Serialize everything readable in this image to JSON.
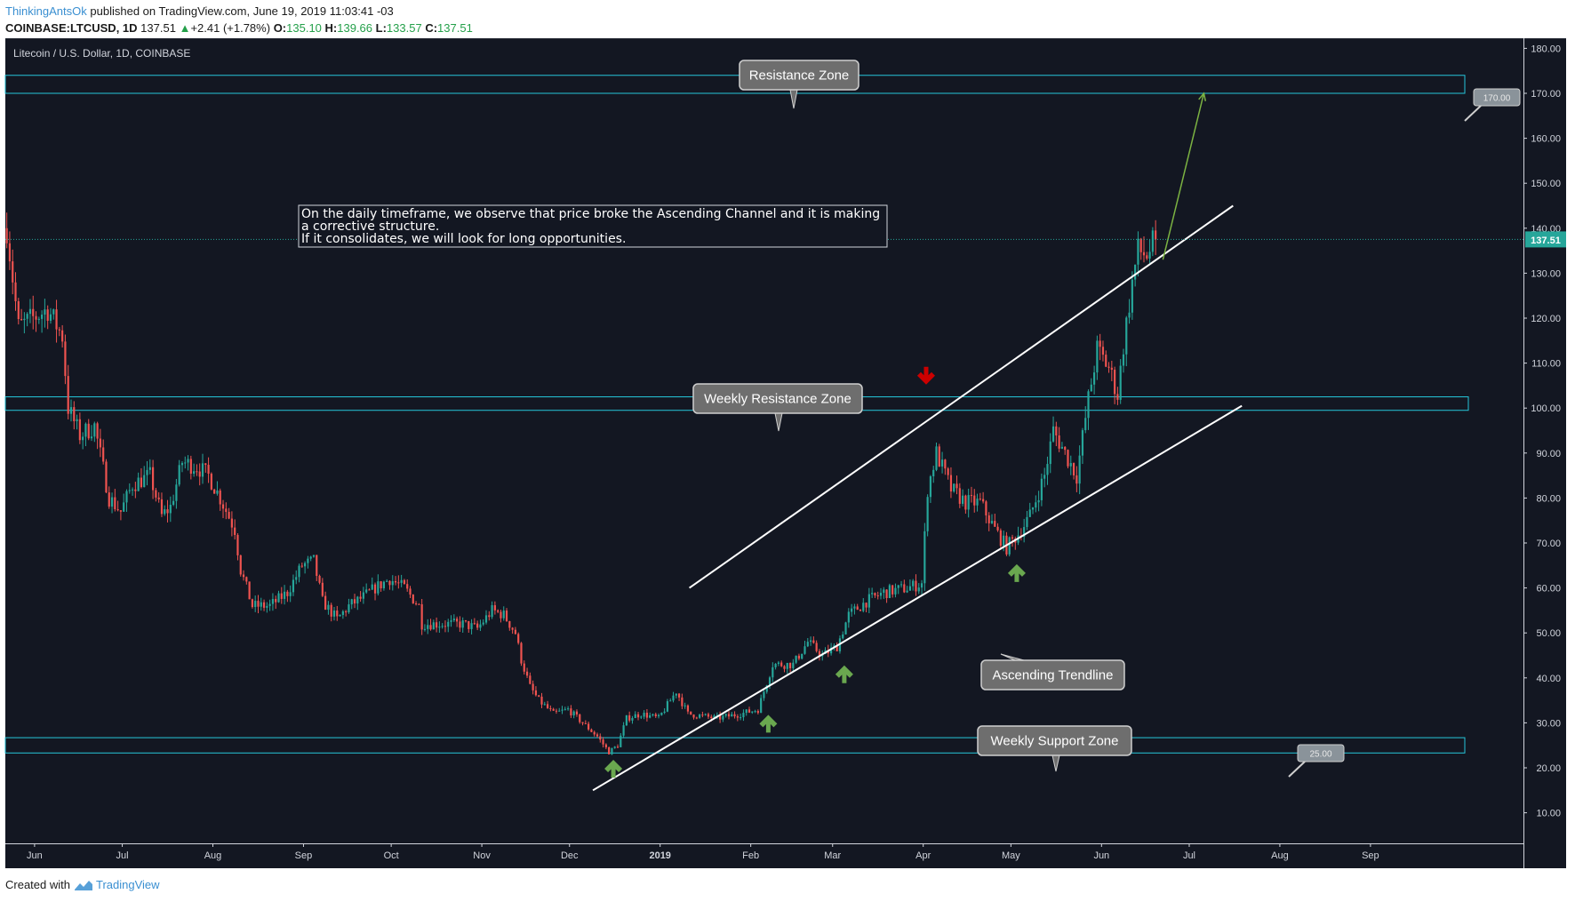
{
  "header": {
    "author": "ThinkingAntsOk",
    "published": "published on TradingView.com, June 19, 2019 11:03:41 -03",
    "symbol": "COINBASE:LTCUSD, 1D",
    "last": "137.51",
    "change": "+2.41 (+1.78%)",
    "o_label": "O:",
    "o": "135.10",
    "h_label": "H:",
    "h": "139.66",
    "l_label": "L:",
    "l": "133.57",
    "c_label": "C:",
    "c": "137.51"
  },
  "footer": {
    "created_with": "Created with",
    "brand": "TradingView"
  },
  "colors": {
    "background": "#131722",
    "up": "#26a69a",
    "down": "#ef5350",
    "zone": "#26c6da",
    "trendline": "#ffffff",
    "projection": "#7cb342",
    "arrow_up": "#6aa84f",
    "arrow_down": "#cc0000"
  },
  "chart_data": {
    "type": "candlestick",
    "title": "Litecoin / U.S. Dollar, 1D, COINBASE",
    "ylim": [
      10,
      190
    ],
    "yticks": [
      10,
      20,
      30,
      40,
      50,
      60,
      70,
      80,
      90,
      100,
      110,
      120,
      130,
      140,
      150,
      160,
      170,
      180
    ],
    "ytick_labels": [
      "10.00",
      "20.00",
      "30.00",
      "40.00",
      "50.00",
      "60.00",
      "70.00",
      "80.00",
      "90.00",
      "100.00",
      "110.00",
      "120.00",
      "130.00",
      "140.00",
      "150.00",
      "160.00",
      "170.00",
      "180.00"
    ],
    "x_start": "2018-05-22",
    "x_end": "2019-09-08",
    "xticks": [
      {
        "date": "2018-06-01",
        "label": "Jun"
      },
      {
        "date": "2018-07-01",
        "label": "Jul"
      },
      {
        "date": "2018-08-01",
        "label": "Aug"
      },
      {
        "date": "2018-09-01",
        "label": "Sep"
      },
      {
        "date": "2018-10-01",
        "label": "Oct"
      },
      {
        "date": "2018-11-01",
        "label": "Nov"
      },
      {
        "date": "2018-12-01",
        "label": "Dec"
      },
      {
        "date": "2019-01-01",
        "label": "2019"
      },
      {
        "date": "2019-02-01",
        "label": "Feb"
      },
      {
        "date": "2019-03-01",
        "label": "Mar"
      },
      {
        "date": "2019-04-01",
        "label": "Apr"
      },
      {
        "date": "2019-05-01",
        "label": "May"
      },
      {
        "date": "2019-06-01",
        "label": "Jun"
      },
      {
        "date": "2019-07-01",
        "label": "Jul"
      },
      {
        "date": "2019-08-01",
        "label": "Aug"
      },
      {
        "date": "2019-09-01",
        "label": "Sep"
      }
    ],
    "price_path": [
      [
        "2018-05-22",
        140
      ],
      [
        "2018-05-26",
        118
      ],
      [
        "2018-06-05",
        122
      ],
      [
        "2018-06-10",
        116
      ],
      [
        "2018-06-12",
        100
      ],
      [
        "2018-06-16",
        94
      ],
      [
        "2018-06-21",
        96
      ],
      [
        "2018-06-26",
        80
      ],
      [
        "2018-06-30",
        77
      ],
      [
        "2018-07-04",
        83
      ],
      [
        "2018-07-10",
        85
      ],
      [
        "2018-07-14",
        76
      ],
      [
        "2018-07-17",
        78
      ],
      [
        "2018-07-21",
        88
      ],
      [
        "2018-07-26",
        87
      ],
      [
        "2018-07-30",
        85
      ],
      [
        "2018-08-03",
        80
      ],
      [
        "2018-08-08",
        73
      ],
      [
        "2018-08-10",
        64
      ],
      [
        "2018-08-14",
        56
      ],
      [
        "2018-08-20",
        56
      ],
      [
        "2018-08-26",
        59
      ],
      [
        "2018-08-31",
        65
      ],
      [
        "2018-09-04",
        66
      ],
      [
        "2018-09-07",
        57
      ],
      [
        "2018-09-12",
        53
      ],
      [
        "2018-09-16",
        56
      ],
      [
        "2018-09-21",
        58
      ],
      [
        "2018-09-25",
        60
      ],
      [
        "2018-09-30",
        62
      ],
      [
        "2018-10-05",
        60
      ],
      [
        "2018-10-10",
        56
      ],
      [
        "2018-10-11",
        52
      ],
      [
        "2018-10-18",
        52
      ],
      [
        "2018-10-25",
        52
      ],
      [
        "2018-10-30",
        51
      ],
      [
        "2018-11-04",
        55
      ],
      [
        "2018-11-08",
        54
      ],
      [
        "2018-11-12",
        50
      ],
      [
        "2018-11-14",
        44
      ],
      [
        "2018-11-17",
        38
      ],
      [
        "2018-11-20",
        35
      ],
      [
        "2018-11-25",
        32
      ],
      [
        "2018-11-30",
        33
      ],
      [
        "2018-12-05",
        30
      ],
      [
        "2018-12-10",
        27
      ],
      [
        "2018-12-14",
        23.5
      ],
      [
        "2018-12-17",
        25
      ],
      [
        "2018-12-20",
        31
      ],
      [
        "2018-12-25",
        32
      ],
      [
        "2018-12-31",
        31
      ],
      [
        "2019-01-06",
        37
      ],
      [
        "2019-01-10",
        32
      ],
      [
        "2019-01-20",
        31
      ],
      [
        "2019-01-28",
        32
      ],
      [
        "2019-02-03",
        33
      ],
      [
        "2019-02-08",
        43
      ],
      [
        "2019-02-15",
        43
      ],
      [
        "2019-02-20",
        48
      ],
      [
        "2019-02-25",
        45
      ],
      [
        "2019-03-02",
        47
      ],
      [
        "2019-03-06",
        54
      ],
      [
        "2019-03-12",
        57
      ],
      [
        "2019-03-18",
        59
      ],
      [
        "2019-03-26",
        60
      ],
      [
        "2019-03-31",
        61
      ],
      [
        "2019-04-02",
        82
      ],
      [
        "2019-04-05",
        90
      ],
      [
        "2019-04-10",
        82
      ],
      [
        "2019-04-15",
        79
      ],
      [
        "2019-04-20",
        79
      ],
      [
        "2019-04-25",
        73
      ],
      [
        "2019-04-29",
        69
      ],
      [
        "2019-05-03",
        72
      ],
      [
        "2019-05-07",
        76
      ],
      [
        "2019-05-12",
        85
      ],
      [
        "2019-05-15",
        95
      ],
      [
        "2019-05-19",
        90
      ],
      [
        "2019-05-23",
        85
      ],
      [
        "2019-05-27",
        102
      ],
      [
        "2019-05-30",
        113
      ],
      [
        "2019-06-03",
        109
      ],
      [
        "2019-06-06",
        103
      ],
      [
        "2019-06-08",
        114
      ],
      [
        "2019-06-11",
        128
      ],
      [
        "2019-06-13",
        135
      ],
      [
        "2019-06-16",
        134
      ],
      [
        "2019-06-19",
        137.51
      ]
    ],
    "zones": [
      {
        "name": "Resistance Zone",
        "low": 170,
        "high": 174
      },
      {
        "name": "Weekly Resistance Zone",
        "low": 99.5,
        "high": 102.5
      },
      {
        "name": "Weekly Support Zone",
        "low": 23.3,
        "high": 26.7
      }
    ],
    "callouts": [
      {
        "text": "Resistance Zone"
      },
      {
        "text": "Weekly Resistance Zone"
      },
      {
        "text": "Ascending Trendline"
      },
      {
        "text": "Weekly Support Zone"
      }
    ],
    "price_labels": [
      "170.00",
      "25.00"
    ],
    "last_price": "137.51",
    "note": [
      "On the daily timeframe, we observe that price broke the Ascending Channel and it is making",
      "a corrective structure.",
      "If it consolidates, we will look for long opportunities."
    ],
    "channel": {
      "upper": [
        [
          "2019-01-11",
          60
        ],
        [
          "2019-07-16",
          145
        ]
      ],
      "lower": [
        [
          "2018-12-09",
          15
        ],
        [
          "2019-07-19",
          100.5
        ]
      ]
    },
    "projection": [
      [
        "2019-06-22",
        133
      ],
      [
        "2019-07-06",
        170
      ]
    ],
    "arrows_up": [
      [
        "2018-12-16",
        20
      ],
      [
        "2019-02-07",
        30
      ],
      [
        "2019-03-05",
        41
      ],
      [
        "2019-05-03",
        63.5
      ]
    ],
    "arrows_down": [
      [
        "2019-04-02",
        107
      ]
    ]
  }
}
